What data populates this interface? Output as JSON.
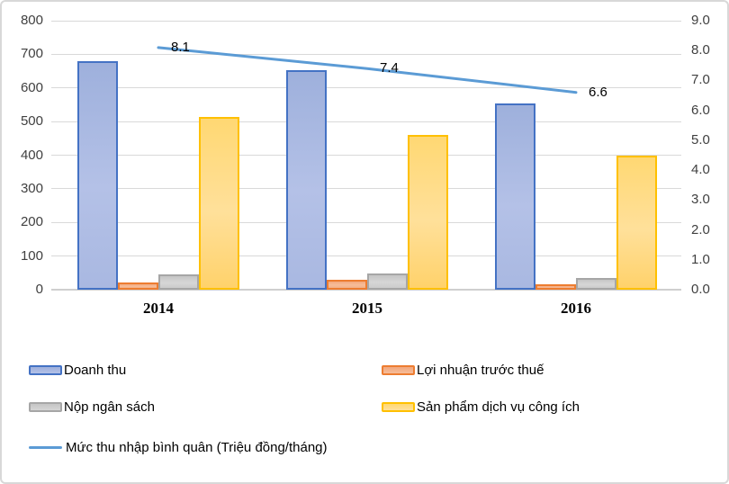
{
  "chart_data": {
    "type": "combo-bar-line",
    "categories": [
      "2014",
      "2015",
      "2016"
    ],
    "bar_series": [
      {
        "key": "doanh-thu",
        "name": "Doanh thu",
        "values": [
          680,
          653,
          555
        ],
        "border": "#4472c4",
        "gradient": [
          "#9eb0dc",
          "#b4c1e7",
          "#a9b8e1"
        ]
      },
      {
        "key": "loi-nhuan-truoc-thue",
        "name": "Lợi nhuận trước thuế",
        "values": [
          22,
          30,
          17
        ],
        "border": "#ed7d31",
        "gradient": [
          "#f2a87d",
          "#f6bd99",
          "#f3b088"
        ]
      },
      {
        "key": "nop-ngan-sach",
        "name": "Nộp ngân sách",
        "values": [
          45,
          48,
          35
        ],
        "border": "#a6a6a6",
        "gradient": [
          "#c5c5c5",
          "#d6d6d6",
          "#cccccc"
        ]
      },
      {
        "key": "san-pham-dich-vu-cong-ich",
        "name": "Sản phẩm dịch vụ công ích",
        "values": [
          515,
          460,
          400
        ],
        "border": "#ffc000",
        "gradient": [
          "#ffd873",
          "#ffe09a",
          "#ffd26b"
        ]
      }
    ],
    "line_series": {
      "key": "muc-thu-nhap-binh-quan",
      "name": "Mức thu nhập bình quân (Triệu đồng/tháng)",
      "values": [
        8.1,
        7.4,
        6.6
      ],
      "labels": [
        "8.1",
        "7.4",
        "6.6"
      ],
      "color": "#5b9bd5"
    },
    "left_axis": {
      "min": 0,
      "max": 800,
      "step": 100,
      "ticks": [
        "800",
        "700",
        "600",
        "500",
        "400",
        "300",
        "200",
        "100",
        "0"
      ]
    },
    "right_axis": {
      "min": 0.0,
      "max": 9.0,
      "step": 1.0,
      "ticks": [
        "9.0",
        "8.0",
        "7.0",
        "6.0",
        "5.0",
        "4.0",
        "3.0",
        "2.0",
        "1.0",
        "0.0"
      ]
    },
    "grid": true,
    "legend_position": "bottom-left-two-columns"
  }
}
